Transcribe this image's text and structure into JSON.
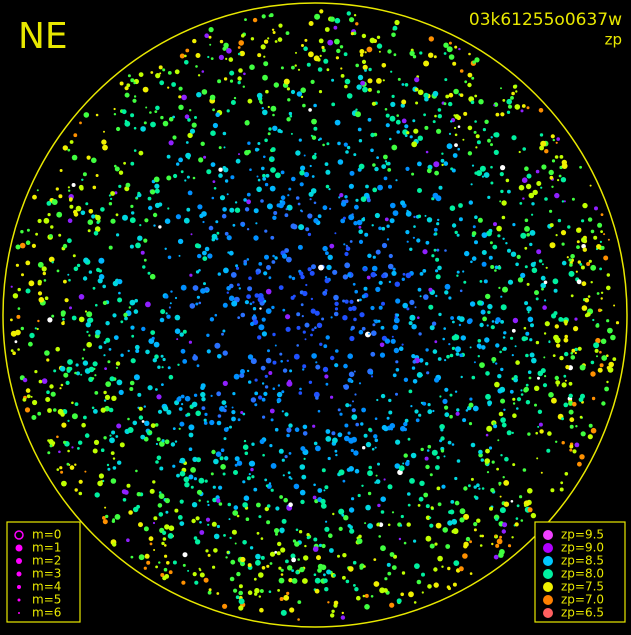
{
  "header": {
    "direction": "NE",
    "frame_id": "03k61255o0637w",
    "mode": "zp"
  },
  "magnitude_legend": {
    "entries": [
      "m=0",
      "m=1",
      "m=2",
      "m=3",
      "m=4",
      "m=5",
      "m=6"
    ]
  },
  "zp_legend": {
    "entries": [
      {
        "label": "zp=9.5",
        "color": "#f040ff"
      },
      {
        "label": "zp=9.0",
        "color": "#b000ff"
      },
      {
        "label": "zp=8.5",
        "color": "#00c8ff"
      },
      {
        "label": "zp=8.0",
        "color": "#00f0a0"
      },
      {
        "label": "zp=7.5",
        "color": "#f0f000"
      },
      {
        "label": "zp=7.0",
        "color": "#ff8000"
      },
      {
        "label": "zp=6.5",
        "color": "#ff6060"
      }
    ]
  }
}
